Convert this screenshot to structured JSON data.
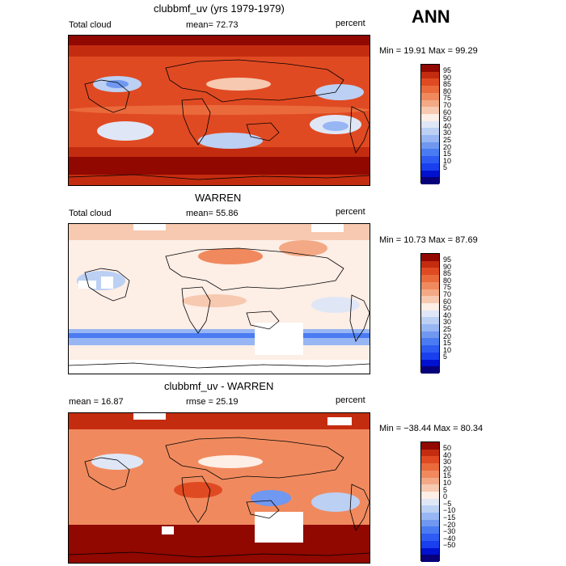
{
  "season": "ANN",
  "colors": {
    "seq": [
      "#08007a",
      "#0011d0",
      "#1a3fee",
      "#2e5cf2",
      "#4a7bf2",
      "#7098f0",
      "#97b6f3",
      "#bcd0f4",
      "#dfe7f6",
      "#fdeee6",
      "#f6c9b0",
      "#f3a985",
      "#f08a5e",
      "#ea6a3c",
      "#e04a22",
      "#c42c10",
      "#900800"
    ],
    "div": [
      "#08007a",
      "#0011d0",
      "#1a3fee",
      "#2e5cf2",
      "#4a7bf2",
      "#7098f0",
      "#97b6f3",
      "#bcd0f4",
      "#dfe7f6",
      "#fdeee6",
      "#f6c9b0",
      "#f3a985",
      "#f08a5e",
      "#ea6a3c",
      "#e04a22",
      "#c42c10",
      "#900800"
    ]
  },
  "panels": [
    {
      "title": "clubbmf_uv (yrs 1979-1979)",
      "left_label": "Total cloud",
      "mid_label": "mean=  72.73",
      "right_label": "percent",
      "minmax": "Min =  19.91  Max =  99.29",
      "ticks": [
        "95",
        "90",
        "85",
        "80",
        "75",
        "70",
        "60",
        "50",
        "40",
        "30",
        "25",
        "20",
        "15",
        "10",
        "5"
      ]
    },
    {
      "title": "WARREN",
      "left_label": "Total cloud",
      "mid_label": "mean=  55.86",
      "right_label": "percent",
      "minmax": "Min =  10.73  Max =  87.69",
      "ticks": [
        "95",
        "90",
        "85",
        "80",
        "75",
        "70",
        "60",
        "50",
        "40",
        "30",
        "25",
        "20",
        "15",
        "10",
        "5"
      ]
    },
    {
      "title": "clubbmf_uv - WARREN",
      "left_label": "mean =  16.87",
      "mid_label": "rmse =  25.19",
      "right_label": "percent",
      "minmax": "Min = −38.44  Max =  80.34",
      "ticks": [
        "50",
        "40",
        "30",
        "20",
        "15",
        "10",
        "5",
        "0",
        "−5",
        "−10",
        "−15",
        "−20",
        "−30",
        "−40",
        "−50"
      ]
    }
  ]
}
